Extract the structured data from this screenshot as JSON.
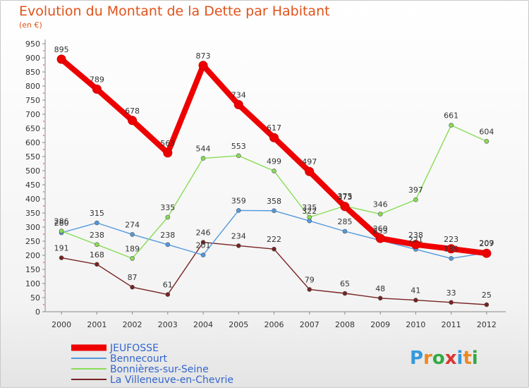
{
  "chart_data": {
    "type": "line",
    "title": "Evolution du Montant de la Dette par Habitant",
    "subtitle": "(en €)",
    "categories": [
      "2000",
      "2001",
      "2002",
      "2003",
      "2004",
      "2005",
      "2006",
      "2007",
      "2008",
      "2009",
      "2010",
      "2011",
      "2012"
    ],
    "ylim": [
      0,
      950
    ],
    "yticks": [
      0,
      50,
      100,
      150,
      200,
      250,
      300,
      350,
      400,
      450,
      500,
      550,
      600,
      650,
      700,
      750,
      800,
      850,
      900,
      950
    ],
    "grid": false,
    "legend_position": "bottom-left",
    "series": [
      {
        "name": "JEUFOSSE",
        "color": "#ee0000",
        "values": [
          895,
          789,
          678,
          563,
          873,
          734,
          617,
          497,
          373,
          260,
          238,
          223,
          207
        ]
      },
      {
        "name": "Bennecourt",
        "color": "#5599dd",
        "values": [
          280,
          315,
          274,
          238,
          201,
          359,
          358,
          322,
          285,
          253,
          221,
          189,
          209
        ]
      },
      {
        "name": "Bonnières-sur-Seine",
        "color": "#88dd55",
        "values": [
          286,
          238,
          189,
          335,
          544,
          553,
          499,
          335,
          375,
          346,
          397,
          661,
          604
        ]
      },
      {
        "name": "La Villeneuve-en-Chevrie",
        "color": "#772222",
        "values": [
          191,
          168,
          87,
          61,
          246,
          234,
          222,
          79,
          65,
          48,
          41,
          33,
          25
        ]
      }
    ]
  },
  "logo": {
    "text": "Proxiti"
  }
}
